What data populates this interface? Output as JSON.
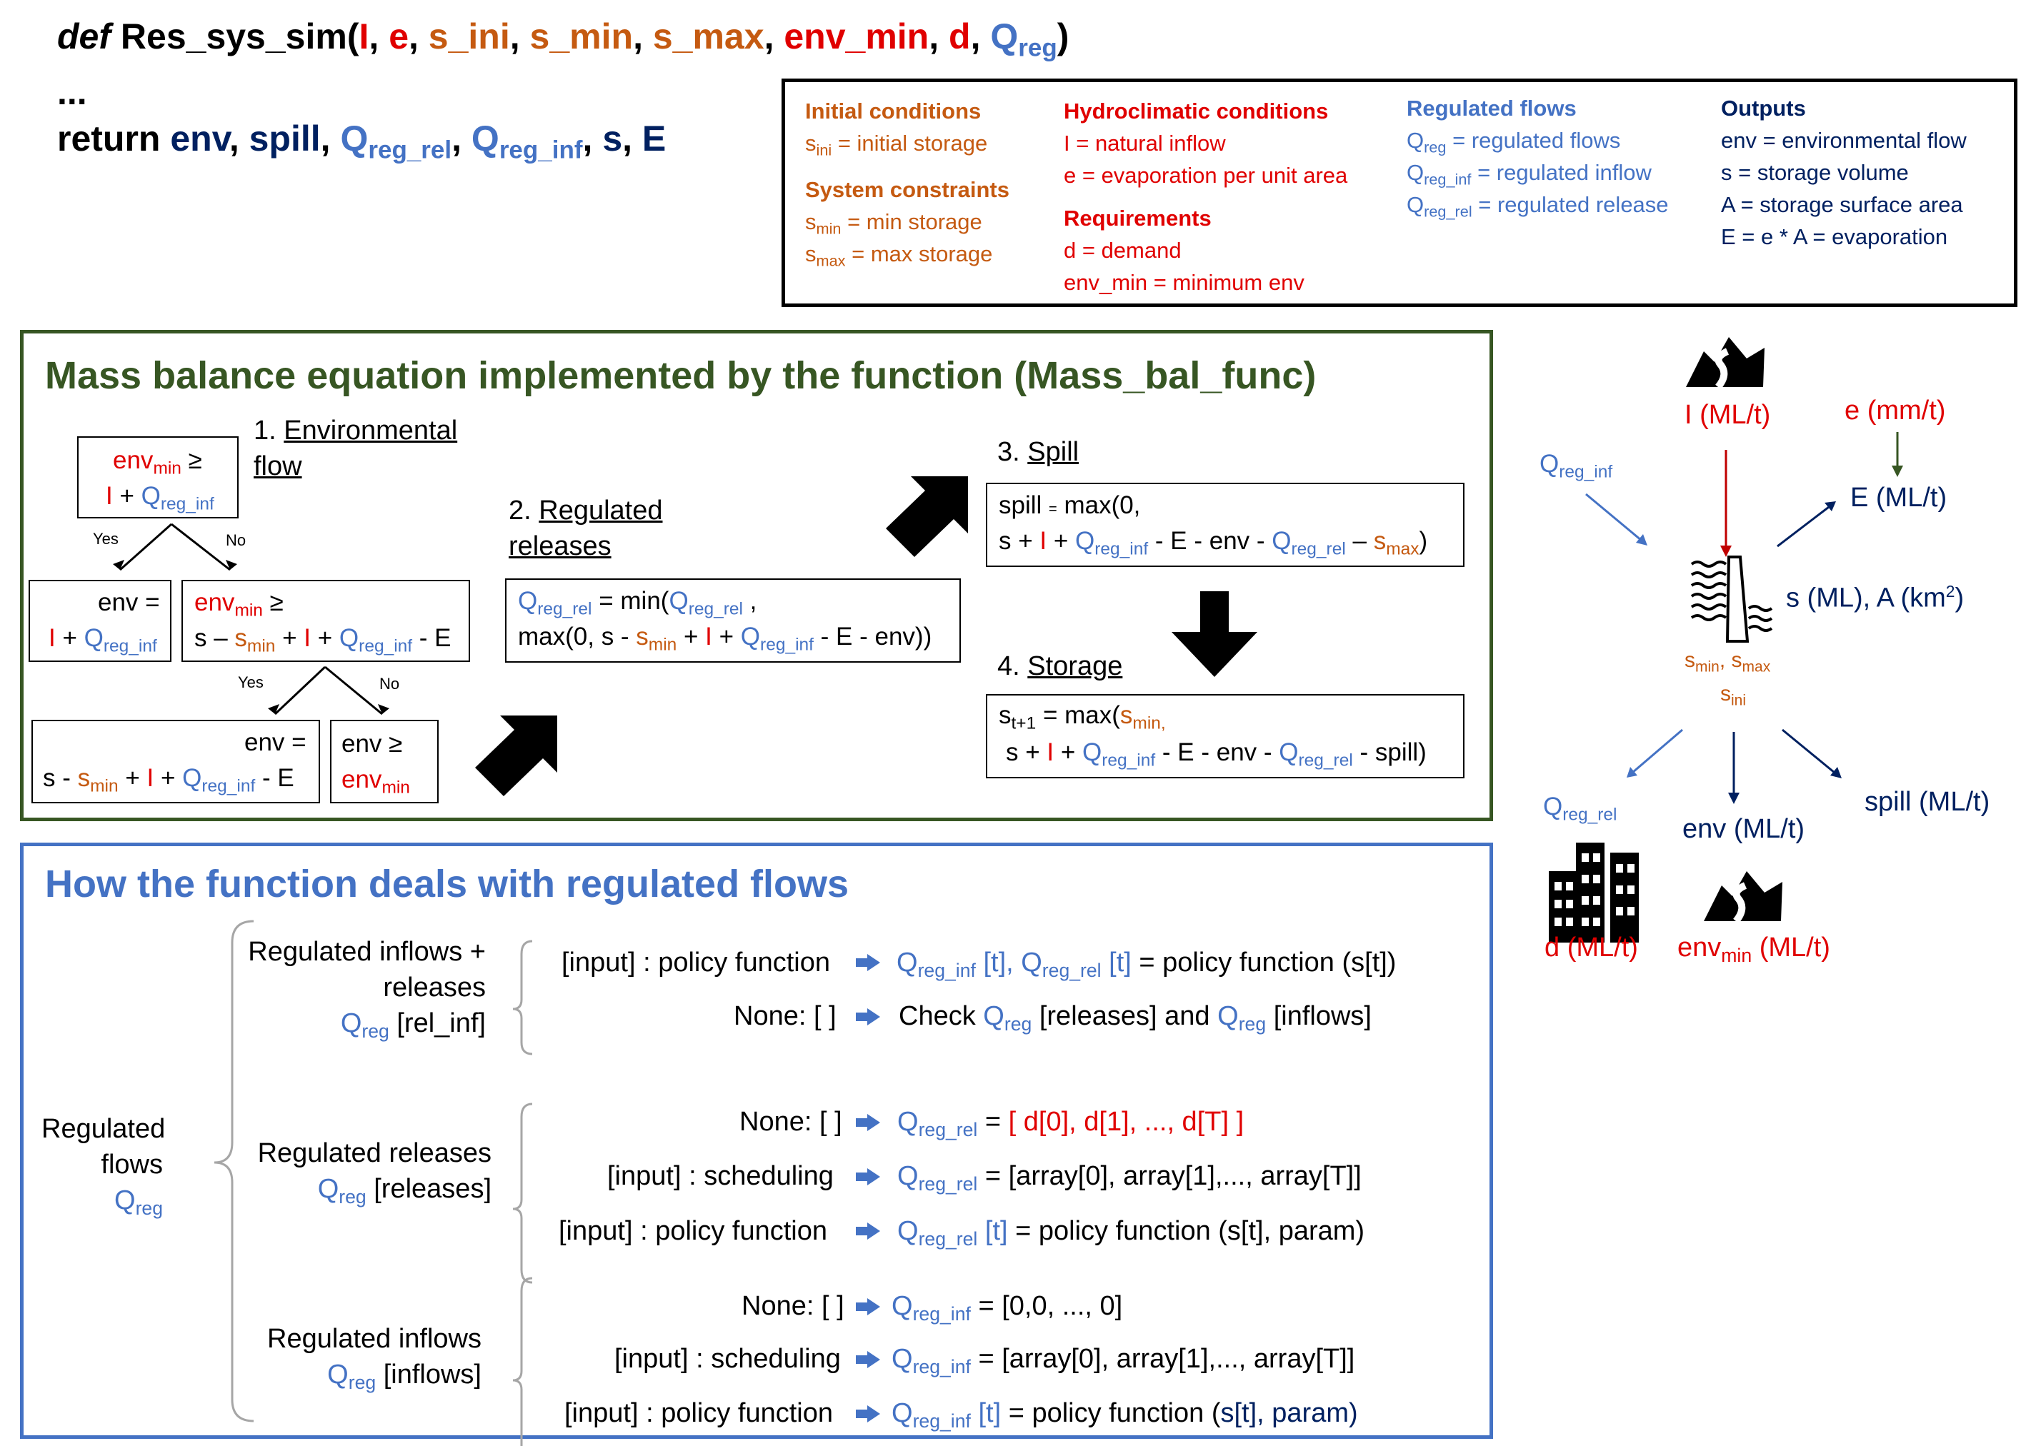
{
  "signature": {
    "def": "def",
    "fname": "Res_sys_sim(",
    "I": "I",
    "e": "e",
    "s_ini": "s_ini",
    "s_min": "s_min",
    "s_max": "s_max",
    "env_min": "env_min",
    "d": "d",
    "Q": "Q",
    "reg_sub": "reg",
    "close": ")",
    "ellipsis": "...",
    "return_kw": "return",
    "env": "env",
    "spill": "spill",
    "Qrr_sub": "reg_rel",
    "Qri_sub": "reg_inf",
    "s": "s",
    "E": "E"
  },
  "legend": {
    "initial_title": "Initial conditions",
    "initial_line": "= initial storage",
    "constraints_title": "System constraints",
    "smin_line": "= min storage",
    "smax_line": "= max storage",
    "hydro_title": "Hydroclimatic conditions",
    "hydro_I": "I = natural inflow",
    "hydro_e": "e = evaporation per unit area",
    "req_title": "Requirements",
    "req_d": "d = demand",
    "req_env": "env_min = minimum env",
    "reg_title": "Regulated flows",
    "reg_q": "= regulated flows",
    "reg_inf": "= regulated inflow",
    "reg_rel": "= regulated release",
    "out_title": "Outputs",
    "out_env": "env = environmental flow",
    "out_s": "s = storage volume",
    "out_A": "A = storage surface area",
    "out_E": "E = e * A = evaporation"
  },
  "mass_balance": {
    "title": "Mass balance equation implemented by the function (Mass_bal_func)",
    "step1_num": "1.",
    "step1_a": "Environmental",
    "step1_b": "flow",
    "step2_num": "2.",
    "step2_a": "Regulated",
    "step2_b": "releases",
    "step3": "3.",
    "step3_label": "Spill",
    "step4": "4.",
    "step4_label": "Storage",
    "yes": "Yes",
    "no": "No"
  },
  "regulated": {
    "title": "How the function deals with regulated flows",
    "root_a": "Regulated",
    "root_b": "flows",
    "g1_a": "Regulated inflows +",
    "g1_b": "releases",
    "g1_c": "[rel_inf]",
    "g2_a": "Regulated releases",
    "g2_b": "[releases]",
    "g3_a": "Regulated inflows",
    "g3_b": "[inflows]",
    "policy": "[input] : policy function",
    "none": "None: [ ]",
    "scheduling": "[input] : scheduling",
    "check_pre": "Check",
    "check_mid": "[releases] and",
    "check_post": "[inflows]",
    "pf_st": "= policy function (s[t])",
    "d_list": "[ d[0], d[1], ..., d[T] ]",
    "arr_list": "= [array[0], array[1],..., array[T]]",
    "pf_param": "= policy function (s[t], param)",
    "zeros": "= [0,0, ..., 0]",
    "t_idx": "[t]",
    "pf_word": "= policy function (",
    "s_t": "s[t]",
    "param_end": ", param)"
  },
  "schematic": {
    "I": "I (ML/t)",
    "e": "e (mm/t)",
    "E": "E (ML/t)",
    "sA": "s (ML), A (km",
    "sq": "2",
    "sA_end": ")",
    "env": "env (ML/t)",
    "spill": "spill (ML/t)",
    "d": "d (ML/t)",
    "envmin_end": "(ML/t)"
  },
  "colors": {
    "red": "#e00000",
    "orange": "#c55a11",
    "blue": "#4472c4",
    "navy": "#002060",
    "green": "#375623"
  },
  "icons": [
    "river-icon",
    "dam-icon",
    "city-icon",
    "arrow-icon"
  ]
}
